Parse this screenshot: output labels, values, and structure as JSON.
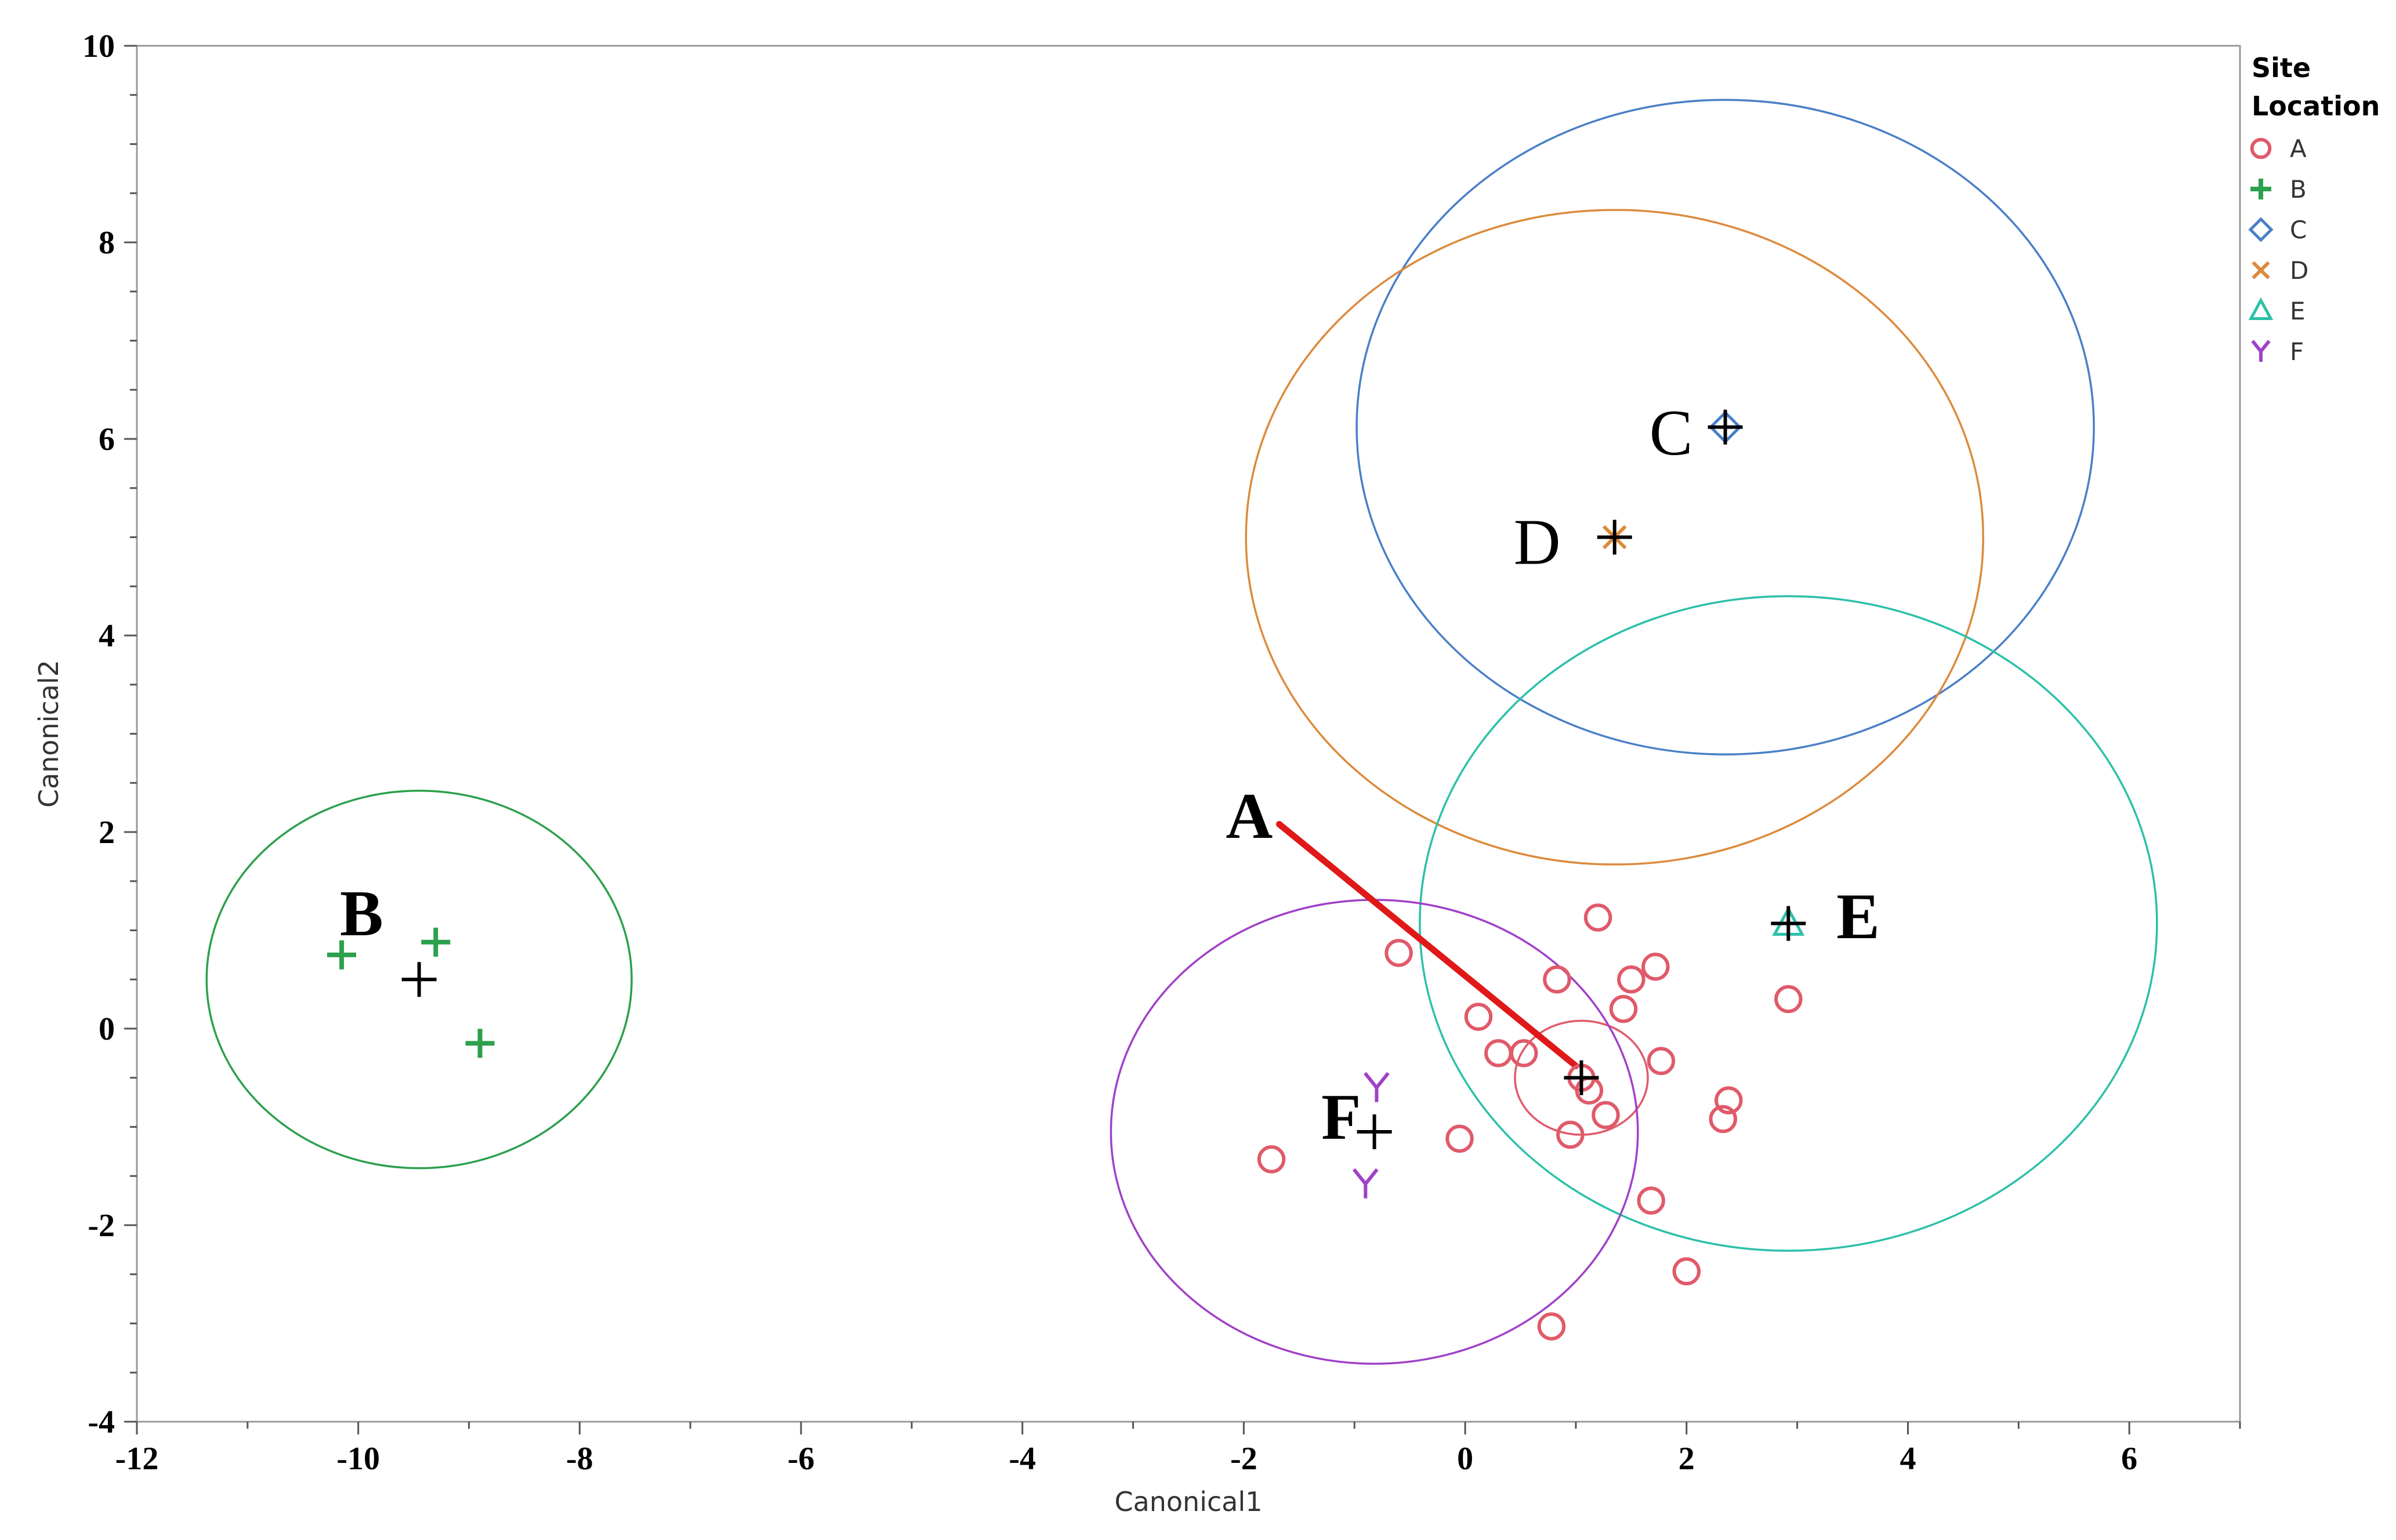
{
  "chart_data": {
    "type": "scatter",
    "title": "",
    "xlabel": "Canonical1",
    "ylabel": "Canonical2",
    "xlim": [
      -12,
      7
    ],
    "ylim": [
      -4,
      10
    ],
    "xticks": [
      -12,
      -10,
      -8,
      -6,
      -4,
      -2,
      0,
      2,
      4,
      6
    ],
    "xtick_labels": [
      "-12",
      "-10",
      "-8",
      "-6",
      "-4",
      "-2",
      "0",
      "2",
      "4",
      "6"
    ],
    "yticks": [
      -4,
      -2,
      0,
      2,
      4,
      6,
      8,
      10
    ],
    "ytick_labels": [
      "-4",
      "-2",
      "0",
      "2",
      "4",
      "6",
      "8",
      "10"
    ],
    "grid": false,
    "legend": {
      "title_line1": "Site",
      "title_line2": "Location",
      "position": "right"
    },
    "series": [
      {
        "name": "A",
        "marker": "circle",
        "color": "#e05a6a",
        "points": [
          [
            1.2,
            1.13
          ],
          [
            -0.6,
            0.77
          ],
          [
            0.83,
            0.5
          ],
          [
            1.72,
            0.63
          ],
          [
            1.5,
            0.5
          ],
          [
            1.43,
            0.2
          ],
          [
            0.12,
            0.12
          ],
          [
            0.3,
            -0.25
          ],
          [
            0.53,
            -0.25
          ],
          [
            1.77,
            -0.33
          ],
          [
            1.05,
            -0.5
          ],
          [
            1.12,
            -0.63
          ],
          [
            1.27,
            -0.88
          ],
          [
            2.38,
            -0.73
          ],
          [
            2.33,
            -0.92
          ],
          [
            0.95,
            -1.08
          ],
          [
            -0.05,
            -1.12
          ],
          [
            -1.75,
            -1.33
          ],
          [
            1.68,
            -1.75
          ],
          [
            2.0,
            -2.47
          ],
          [
            0.78,
            -3.03
          ],
          [
            2.92,
            0.3
          ]
        ],
        "mean": [
          1.05,
          -0.5
        ],
        "ellipse_radii": [
          0.6,
          0.58
        ]
      },
      {
        "name": "B",
        "marker": "plus",
        "color": "#2ca04c",
        "points": [
          [
            -10.15,
            0.75
          ],
          [
            -9.3,
            0.88
          ],
          [
            -8.9,
            -0.15
          ]
        ],
        "mean": [
          -9.45,
          0.5
        ],
        "ellipse_radii": [
          1.92,
          1.92
        ]
      },
      {
        "name": "C",
        "marker": "diamond",
        "color": "#4a7fc8",
        "points": [
          [
            2.35,
            6.12
          ]
        ],
        "mean": [
          2.35,
          6.12
        ],
        "ellipse_radii": [
          3.33,
          3.33
        ]
      },
      {
        "name": "D",
        "marker": "x",
        "color": "#dd8a3c",
        "points": [
          [
            1.35,
            5.0
          ]
        ],
        "mean": [
          1.35,
          5.0
        ],
        "ellipse_radii": [
          3.33,
          3.33
        ]
      },
      {
        "name": "E",
        "marker": "triangle",
        "color": "#2cc0a8",
        "points": [
          [
            2.92,
            1.07
          ]
        ],
        "mean": [
          2.92,
          1.07
        ],
        "ellipse_radii": [
          3.33,
          3.33
        ]
      },
      {
        "name": "F",
        "marker": "y",
        "color": "#a040c8",
        "points": [
          [
            -0.8,
            -0.6
          ],
          [
            -0.9,
            -1.58
          ]
        ],
        "mean": [
          -0.82,
          -1.05
        ],
        "ellipse_radii": [
          2.38,
          2.36
        ]
      }
    ],
    "annotations": [
      {
        "text": "A",
        "x": -1.95,
        "y": 1.94,
        "weight": "bold"
      },
      {
        "text": "B",
        "x": -9.97,
        "y": 0.95,
        "weight": "bold"
      },
      {
        "text": "C",
        "x": 1.86,
        "y": 5.84,
        "weight": "normal"
      },
      {
        "text": "D",
        "x": 0.65,
        "y": 4.73,
        "weight": "normal"
      },
      {
        "text": "E",
        "x": 3.55,
        "y": 0.92,
        "weight": "bold"
      },
      {
        "text": "F",
        "x": -1.12,
        "y": -1.12,
        "weight": "bold"
      }
    ],
    "arrow": {
      "from": [
        -1.68,
        2.08
      ],
      "to": [
        1.0,
        -0.38
      ],
      "color": "#e01818"
    }
  }
}
